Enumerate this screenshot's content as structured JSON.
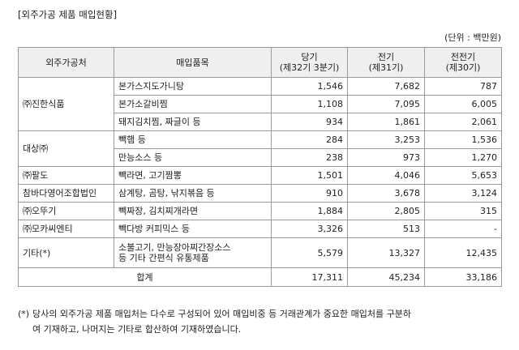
{
  "title": "[외주가공 제품 매입현황]",
  "unit": "(단위 : 백만원)",
  "table": {
    "headers": {
      "company": "외주가공처",
      "item": "매입품목",
      "current_l1": "당기",
      "current_l2": "(제32기 3분기)",
      "prior_l1": "전기",
      "prior_l2": "(제31기)",
      "prior2_l1": "전전기",
      "prior2_l2": "(제30기)"
    },
    "groups": [
      {
        "company": "㈜진한식품",
        "rows": [
          {
            "item": "본가스지도가니탕",
            "current": "1,546",
            "prior": "7,682",
            "prior2": "787"
          },
          {
            "item": "본가소갈비찜",
            "current": "1,108",
            "prior": "7,095",
            "prior2": "6,005"
          },
          {
            "item": "돼지김치찜, 짜글이 등",
            "current": "934",
            "prior": "1,861",
            "prior2": "2,061"
          }
        ]
      },
      {
        "company": "대상㈜",
        "rows": [
          {
            "item": "빽햄 등",
            "current": "284",
            "prior": "3,253",
            "prior2": "1,536"
          },
          {
            "item": "만능소스 등",
            "current": "238",
            "prior": "973",
            "prior2": "1,270"
          }
        ]
      },
      {
        "company": "㈜팔도",
        "rows": [
          {
            "item": "빽라면, 고기짬뽕",
            "current": "1,501",
            "prior": "4,046",
            "prior2": "5,653"
          }
        ]
      },
      {
        "company": "참바다영어조합법인",
        "rows": [
          {
            "item": "삼계탕, 곰탕, 낚지볶음 등",
            "current": "910",
            "prior": "3,678",
            "prior2": "3,124"
          }
        ]
      },
      {
        "company": "㈜오뚜기",
        "rows": [
          {
            "item": "빽짜장, 김치찌개라면",
            "current": "1,884",
            "prior": "2,805",
            "prior2": "315"
          }
        ]
      },
      {
        "company": "㈜모카씨엔티",
        "rows": [
          {
            "item": "빽다방 커피믹스 등",
            "current": "3,326",
            "prior": "513",
            "prior2": "-"
          }
        ]
      },
      {
        "company": "기타(*)",
        "rows": [
          {
            "item_l1": "소불고기, 만능장아찌간장소스",
            "item_l2": "등 기타 간편식 유통제품",
            "current": "5,579",
            "prior": "13,327",
            "prior2": "12,435"
          }
        ]
      }
    ],
    "total": {
      "label": "합계",
      "current": "17,311",
      "prior": "45,234",
      "prior2": "33,186"
    }
  },
  "note": {
    "mark": "(*)",
    "line1": "당사의 외주가공 제품 매입처는 다수로 구성되어 있어 매입비중 등 거래관계가 중요한 매입처를 구분하",
    "line2": "여 기재하고, 나머지는 기타로 합산하여 기재하였습니다."
  }
}
